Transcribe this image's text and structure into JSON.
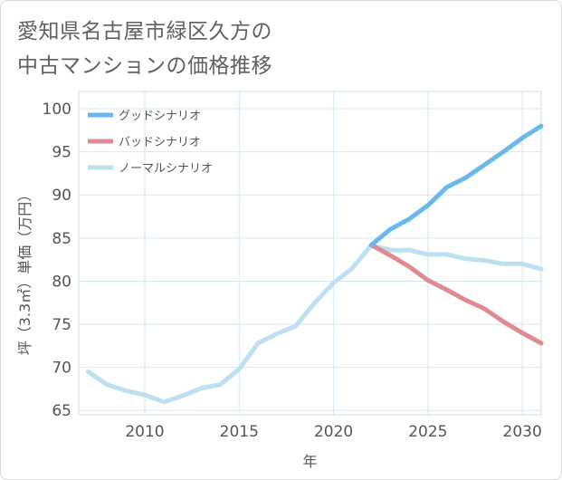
{
  "chart_data": {
    "type": "line",
    "title_line1": "愛知県名古屋市緑区久方の",
    "title_line2": "中古マンションの価格推移",
    "xlabel": "年",
    "ylabel": "坪（3.3㎡）単価（万円）",
    "xlim": [
      2006.5,
      2031
    ],
    "ylim": [
      64.5,
      102
    ],
    "x_ticks": [
      2010,
      2015,
      2020,
      2025,
      2030
    ],
    "y_ticks": [
      65,
      70,
      75,
      80,
      85,
      90,
      95,
      100
    ],
    "grid": true,
    "legend_position": "top-left",
    "series": [
      {
        "name": "グッドシナリオ",
        "color": "#6bb9ec",
        "x": [
          2022,
          2023,
          2024,
          2025,
          2026,
          2027,
          2028,
          2029,
          2030,
          2031
        ],
        "y": [
          84.2,
          86.0,
          87.2,
          88.8,
          90.9,
          92.0,
          93.5,
          95.0,
          96.6,
          98.0
        ]
      },
      {
        "name": "バッドシナリオ",
        "color": "#e08a91",
        "x": [
          2022,
          2023,
          2024,
          2025,
          2026,
          2027,
          2028,
          2029,
          2030,
          2031
        ],
        "y": [
          84.2,
          83.0,
          81.7,
          80.1,
          79.0,
          77.8,
          76.8,
          75.3,
          74.0,
          72.8
        ]
      },
      {
        "name": "ノーマルシナリオ",
        "color": "#bde0f0",
        "x": [
          2007,
          2008,
          2009,
          2010,
          2011,
          2012,
          2013,
          2014,
          2015,
          2016,
          2017,
          2018,
          2019,
          2020,
          2021,
          2022,
          2023,
          2024,
          2025,
          2026,
          2027,
          2028,
          2029,
          2030,
          2031
        ],
        "y": [
          69.5,
          68.0,
          67.3,
          66.8,
          66.0,
          66.7,
          67.6,
          68.0,
          69.8,
          72.8,
          73.9,
          74.8,
          77.5,
          79.8,
          81.5,
          84.2,
          83.6,
          83.6,
          83.1,
          83.1,
          82.6,
          82.4,
          82.0,
          82.0,
          81.4
        ]
      }
    ]
  }
}
